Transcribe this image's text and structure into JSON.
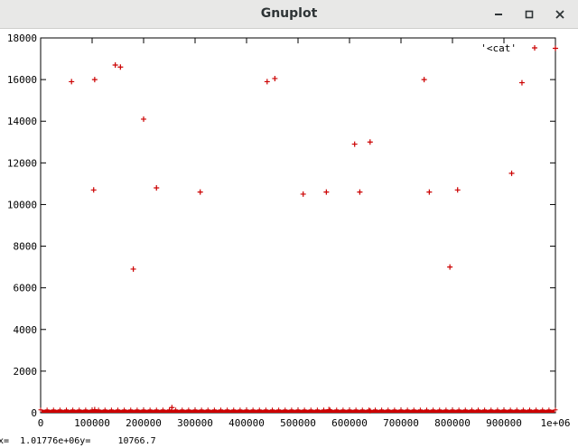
{
  "window": {
    "title": "Gnuplot",
    "minimize_icon": "minimize-icon",
    "maximize_icon": "maximize-icon",
    "close_icon": "close-icon"
  },
  "status": {
    "coordinates": "x=  1.01776e+06y=     10766.7"
  },
  "chart_data": {
    "type": "scatter",
    "title": "",
    "xlabel": "",
    "ylabel": "",
    "xlim": [
      0,
      1000000
    ],
    "ylim": [
      0,
      18000
    ],
    "x_ticks": [
      0,
      100000,
      200000,
      300000,
      400000,
      500000,
      600000,
      700000,
      800000,
      900000,
      1000000
    ],
    "x_tick_labels": [
      "0",
      "100000",
      "200000",
      "300000",
      "400000",
      "500000",
      "600000",
      "700000",
      "800000",
      "900000",
      "1e+06"
    ],
    "y_ticks": [
      0,
      2000,
      4000,
      6000,
      8000,
      10000,
      12000,
      14000,
      16000,
      18000
    ],
    "y_tick_labels": [
      "0",
      "2000",
      "4000",
      "6000",
      "8000",
      "10000",
      "12000",
      "14000",
      "16000",
      "18000"
    ],
    "grid": false,
    "legend_position": "top-right",
    "marker": "+",
    "color": "#cc0000",
    "series": [
      {
        "name": "'<cat'",
        "points": [
          [
            60000,
            15900
          ],
          [
            105000,
            16000
          ],
          [
            145000,
            16700
          ],
          [
            155000,
            16600
          ],
          [
            103000,
            10700
          ],
          [
            200000,
            14100
          ],
          [
            225000,
            10800
          ],
          [
            180000,
            6900
          ],
          [
            310000,
            10600
          ],
          [
            440000,
            15900
          ],
          [
            455000,
            16050
          ],
          [
            510000,
            10500
          ],
          [
            555000,
            10600
          ],
          [
            610000,
            12900
          ],
          [
            640000,
            13000
          ],
          [
            620000,
            10600
          ],
          [
            745000,
            16000
          ],
          [
            755000,
            10600
          ],
          [
            795000,
            7000
          ],
          [
            810000,
            10700
          ],
          [
            915000,
            11500
          ],
          [
            935000,
            15850
          ],
          [
            1000000,
            17500
          ],
          [
            105000,
            150
          ],
          [
            255000,
            250
          ],
          [
            560000,
            150
          ],
          [
            640000,
            100
          ]
        ],
        "baseline": {
          "x_range": [
            0,
            1000000
          ],
          "y_range": [
            0,
            100
          ]
        }
      }
    ]
  }
}
